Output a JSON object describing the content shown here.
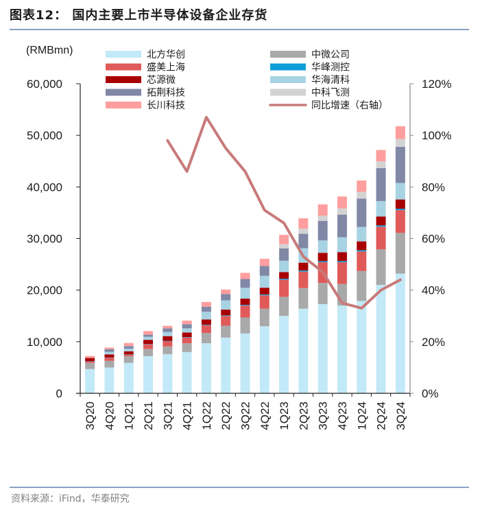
{
  "header": {
    "title": "图表12：  国内主要上市半导体设备企业存货"
  },
  "footer": {
    "source": "资料来源：iFind，华泰研究"
  },
  "chart_data": {
    "type": "bar",
    "stacked": true,
    "title": "国内主要上市半导体设备企业存货",
    "ylabel": "(RMBmn)",
    "y2label": "",
    "ylim": [
      0,
      60000
    ],
    "y2lim": [
      0,
      1.2
    ],
    "yticks": [
      "0",
      "10,000",
      "20,000",
      "30,000",
      "40,000",
      "50,000",
      "60,000"
    ],
    "y2ticks": [
      "0%",
      "20%",
      "40%",
      "60%",
      "80%",
      "100%",
      "120%"
    ],
    "grid": false,
    "legend_position": "top",
    "categories": [
      "3Q20",
      "4Q20",
      "1Q21",
      "2Q21",
      "3Q21",
      "4Q21",
      "1Q22",
      "2Q22",
      "3Q22",
      "4Q22",
      "1Q23",
      "2Q23",
      "3Q23",
      "4Q23",
      "1Q24",
      "2Q24",
      "3Q24"
    ],
    "series": [
      {
        "name": "北方华创",
        "color": "#c2e9f7",
        "values": [
          4700,
          5000,
          5900,
          7200,
          7600,
          8000,
          9700,
          10800,
          11600,
          13000,
          15000,
          16400,
          17300,
          17000,
          17900,
          21000,
          23200
        ]
      },
      {
        "name": "中微公司",
        "color": "#a9a9a9",
        "values": [
          1200,
          1300,
          1300,
          1400,
          1500,
          1700,
          2000,
          2300,
          3100,
          3400,
          3700,
          4000,
          4100,
          4200,
          5800,
          6900,
          7900
        ]
      },
      {
        "name": "盛美上海",
        "color": "#e05a5a",
        "values": [
          300,
          600,
          300,
          900,
          1000,
          1100,
          1500,
          1900,
          2300,
          2600,
          3300,
          3200,
          4000,
          4200,
          3800,
          4400,
          4400
        ]
      },
      {
        "name": "华峰测控",
        "color": "#0b9ed8",
        "values": [
          40,
          50,
          50,
          60,
          80,
          90,
          100,
          120,
          150,
          170,
          200,
          220,
          230,
          240,
          250,
          260,
          270
        ]
      },
      {
        "name": "芯源微",
        "color": "#a80000",
        "values": [
          600,
          600,
          600,
          800,
          900,
          900,
          1000,
          1100,
          1200,
          1300,
          1300,
          1500,
          1600,
          1700,
          1700,
          1700,
          1800
        ]
      },
      {
        "name": "华海清科",
        "color": "#a8d3e3",
        "values": [
          0,
          500,
          500,
          600,
          800,
          800,
          1500,
          1800,
          2100,
          2300,
          2200,
          2800,
          2400,
          2900,
          2800,
          3000,
          3200
        ]
      },
      {
        "name": "拓荆科技",
        "color": "#8088a6",
        "values": [
          0,
          500,
          500,
          400,
          700,
          800,
          1000,
          1200,
          1700,
          1900,
          2400,
          2800,
          3800,
          4400,
          5500,
          6400,
          7000
        ]
      },
      {
        "name": "中科飞测",
        "color": "#d3d3d3",
        "values": [
          0,
          0,
          0,
          0,
          0,
          0,
          0,
          0,
          0,
          0,
          800,
          1000,
          1000,
          1200,
          1300,
          1300,
          1500
        ]
      },
      {
        "name": "长川科技",
        "color": "#ff9e9e",
        "values": [
          400,
          300,
          600,
          700,
          500,
          700,
          900,
          900,
          1200,
          1400,
          1800,
          2000,
          2200,
          2300,
          2200,
          2200,
          2500
        ]
      }
    ],
    "line_series": {
      "name": "同比增速（右轴）",
      "color": "#c87a7a",
      "axis": "right",
      "values": [
        null,
        null,
        null,
        null,
        0.98,
        0.86,
        1.07,
        0.95,
        0.86,
        0.71,
        0.66,
        0.53,
        0.47,
        0.35,
        0.33,
        0.4,
        0.44
      ]
    },
    "legend_order": [
      "北方华创",
      "中微公司",
      "盛美上海",
      "华峰测控",
      "芯源微",
      "华海清科",
      "拓荆科技",
      "中科飞测",
      "长川科技",
      "同比增速（右轴）"
    ]
  }
}
